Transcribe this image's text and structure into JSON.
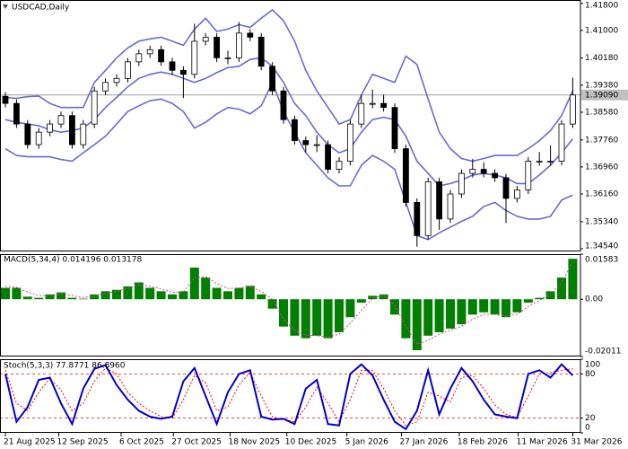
{
  "chart_data": [
    {
      "type": "candlestick",
      "title": "USDCAD,Daily",
      "open": [
        1.3905,
        1.3884,
        1.3823,
        1.3762,
        1.3799,
        1.3823,
        1.3848,
        1.3762,
        1.3823,
        1.3921,
        1.3946,
        1.3958,
        1.4007,
        1.4031,
        1.4043,
        1.4007,
        1.3982,
        1.397,
        1.4068,
        1.408,
        1.4019,
        1.4019,
        1.4092,
        1.408,
        1.3994,
        1.3921,
        1.3836,
        1.3774,
        1.3762,
        1.3762,
        1.3689,
        1.3713,
        1.3823,
        1.3884,
        1.3884,
        1.3872,
        1.375,
        1.3591,
        1.3493,
        1.3652,
        1.3542,
        1.3616,
        1.3677,
        1.3689,
        1.3677,
        1.3664,
        1.3603,
        1.3628,
        1.3713,
        1.3713,
        1.3713,
        1.3823
      ],
      "high": [
        1.3917,
        1.3896,
        1.3835,
        1.3811,
        1.3835,
        1.386,
        1.386,
        1.3835,
        1.3933,
        1.3958,
        1.397,
        1.4019,
        1.4043,
        1.4055,
        1.4055,
        1.4019,
        1.3994,
        1.412,
        1.4092,
        1.4092,
        1.404,
        1.4125,
        1.4104,
        1.4092,
        1.4006,
        1.3933,
        1.3848,
        1.3786,
        1.379,
        1.3774,
        1.3725,
        1.3835,
        1.391,
        1.3925,
        1.391,
        1.3884,
        1.3762,
        1.3603,
        1.3664,
        1.3664,
        1.3628,
        1.3689,
        1.372,
        1.371,
        1.3689,
        1.3676,
        1.364,
        1.3725,
        1.374,
        1.376,
        1.3835,
        1.396
      ],
      "low": [
        1.3872,
        1.3811,
        1.375,
        1.375,
        1.3787,
        1.3811,
        1.375,
        1.375,
        1.3811,
        1.3909,
        1.3934,
        1.3946,
        1.3995,
        1.4019,
        1.3995,
        1.397,
        1.39,
        1.3958,
        1.4056,
        1.4007,
        1.4,
        1.4007,
        1.4068,
        1.3982,
        1.3909,
        1.3824,
        1.3762,
        1.374,
        1.374,
        1.3677,
        1.3677,
        1.3701,
        1.3811,
        1.387,
        1.386,
        1.3738,
        1.3579,
        1.346,
        1.3481,
        1.351,
        1.353,
        1.3604,
        1.3665,
        1.3665,
        1.3652,
        1.353,
        1.3591,
        1.3616,
        1.37,
        1.37,
        1.3701,
        1.3811
      ],
      "close": [
        1.3884,
        1.3823,
        1.3762,
        1.3799,
        1.3823,
        1.3848,
        1.3762,
        1.3823,
        1.3921,
        1.3946,
        1.3958,
        1.4007,
        1.4031,
        1.4043,
        1.4007,
        1.3982,
        1.397,
        1.4068,
        1.408,
        1.4019,
        1.4019,
        1.4092,
        1.408,
        1.3994,
        1.3921,
        1.3836,
        1.3774,
        1.3762,
        1.3762,
        1.3689,
        1.3713,
        1.3823,
        1.3884,
        1.3884,
        1.3872,
        1.375,
        1.3591,
        1.3493,
        1.3652,
        1.3542,
        1.3616,
        1.3677,
        1.3689,
        1.3677,
        1.3664,
        1.3603,
        1.3628,
        1.3713,
        1.3713,
        1.3713,
        1.3823,
        1.3909
      ],
      "bands": {
        "color": "#6a6ad0",
        "upper": [
          1.3902,
          1.3899,
          1.3904,
          1.3906,
          1.3884,
          1.3872,
          1.3872,
          1.3872,
          1.3946,
          1.3982,
          1.4019,
          1.4048,
          1.4068,
          1.4075,
          1.408,
          1.4068,
          1.4056,
          1.4104,
          1.4136,
          1.4097,
          1.4104,
          1.4117,
          1.4109,
          1.4136,
          1.4161,
          1.4129,
          1.4068,
          1.3982,
          1.3921,
          1.3872,
          1.3823,
          1.3836,
          1.3909,
          1.397,
          1.3958,
          1.3946,
          1.4024,
          1.3999,
          1.3897,
          1.3799,
          1.375,
          1.3721,
          1.3713,
          1.3721,
          1.373,
          1.373,
          1.373,
          1.375,
          1.3774,
          1.3804,
          1.3848,
          1.3921
        ],
        "middle": [
          1.3836,
          1.3828,
          1.3823,
          1.3818,
          1.3806,
          1.3799,
          1.3804,
          1.3811,
          1.3836,
          1.3872,
          1.3902,
          1.3933,
          1.3958,
          1.397,
          1.3977,
          1.397,
          1.3958,
          1.3946,
          1.3958,
          1.3975,
          1.399,
          1.3994,
          1.4014,
          1.4019,
          1.3994,
          1.3946,
          1.3884,
          1.3848,
          1.3799,
          1.3762,
          1.3738,
          1.375,
          1.3799,
          1.3836,
          1.3843,
          1.3836,
          1.3787,
          1.3713,
          1.3677,
          1.364,
          1.3647,
          1.3657,
          1.3672,
          1.3677,
          1.3672,
          1.3664,
          1.3647,
          1.3647,
          1.3672,
          1.3701,
          1.3738,
          1.3779
        ],
        "lower": [
          1.375,
          1.373,
          1.3726,
          1.3726,
          1.3726,
          1.3718,
          1.3713,
          1.3738,
          1.3762,
          1.3787,
          1.3823,
          1.386,
          1.3877,
          1.3892,
          1.3897,
          1.3884,
          1.386,
          1.3811,
          1.3828,
          1.3853,
          1.3872,
          1.3867,
          1.3853,
          1.3877,
          1.3946,
          1.386,
          1.3799,
          1.3738,
          1.3701,
          1.3664,
          1.364,
          1.364,
          1.3701,
          1.373,
          1.3713,
          1.3689,
          1.3591,
          1.3493,
          1.3481,
          1.3501,
          1.3518,
          1.3535,
          1.355,
          1.3579,
          1.3591,
          1.3567,
          1.355,
          1.3542,
          1.3542,
          1.355,
          1.3598,
          1.3613
        ]
      },
      "last_price": {
        "value": 1.3909,
        "label": "1.39090"
      },
      "ylim": [
        1.3446,
        1.419
      ],
      "yticks": [
        {
          "value": 1.418,
          "label": "1.41800"
        },
        {
          "value": 1.41,
          "label": "1.41000"
        },
        {
          "value": 1.4018,
          "label": "1.40180"
        },
        {
          "value": 1.3938,
          "label": "1.39380"
        },
        {
          "value": 1.3858,
          "label": "1.38580"
        },
        {
          "value": 1.3776,
          "label": "1.37760"
        },
        {
          "value": 1.3696,
          "label": "1.36960"
        },
        {
          "value": 1.3616,
          "label": "1.36160"
        },
        {
          "value": 1.3534,
          "label": "1.35340"
        },
        {
          "value": 1.3454,
          "label": "1.34540"
        }
      ]
    },
    {
      "type": "macd",
      "title": "MACD(5,34,4) 0.014196 0.013178",
      "histogram": {
        "color": "#008000",
        "values": [
          0.004,
          0.004,
          0.0009,
          0.0005,
          0.0017,
          0.0024,
          0.0005,
          0.0002,
          0.0017,
          0.0028,
          0.0033,
          0.0045,
          0.0059,
          0.004,
          0.0028,
          0.0017,
          0.0028,
          0.0111,
          0.0076,
          0.004,
          0.0028,
          0.004,
          0.0047,
          0.0017,
          -0.0033,
          -0.0096,
          -0.0128,
          -0.0137,
          -0.0128,
          -0.0137,
          -0.0116,
          -0.0063,
          -0.0012,
          0.0012,
          0.0017,
          -0.0054,
          -0.0137,
          -0.0179,
          -0.0128,
          -0.0116,
          -0.0103,
          -0.0088,
          -0.0054,
          -0.0046,
          -0.0054,
          -0.0063,
          -0.0046,
          -0.0012,
          0.0005,
          0.0028,
          0.0076,
          0.0142
        ]
      },
      "signal": {
        "color": "#e0409a",
        "values": [
          0.0045,
          0.0042,
          0.0025,
          0.0012,
          0.0012,
          0.0019,
          0.0013,
          0.0006,
          0.0011,
          0.0021,
          0.0028,
          0.0038,
          0.005,
          0.0046,
          0.0036,
          0.0024,
          0.0025,
          0.0075,
          0.008,
          0.0055,
          0.0038,
          0.0039,
          0.0044,
          0.0027,
          0.0,
          -0.007,
          -0.011,
          -0.0126,
          -0.0128,
          -0.0133,
          -0.0123,
          -0.0084,
          -0.0039,
          0.0003,
          0.0014,
          -0.0021,
          -0.0096,
          -0.0158,
          -0.0144,
          -0.0123,
          -0.0109,
          -0.0095,
          -0.007,
          -0.0053,
          -0.0053,
          -0.006,
          -0.0053,
          -0.0025,
          -0.0004,
          0.0018,
          0.0058,
          0.0132
        ]
      },
      "ylim": [
        -0.02011,
        0.01583
      ],
      "yticks": [
        0.01583,
        {
          "value": 0,
          "label": "0.00"
        },
        -0.02011
      ]
    },
    {
      "type": "stochastic",
      "title": "Stoch(5,3,3) 77.8771 86.8960",
      "main": {
        "color": "#0000cc",
        "values": [
          80,
          15,
          35,
          72,
          75,
          40,
          12,
          60,
          87,
          92,
          65,
          45,
          30,
          22,
          19,
          22,
          70,
          88,
          50,
          12,
          55,
          80,
          85,
          22,
          18,
          19,
          12,
          60,
          72,
          12,
          10,
          80,
          93,
          78,
          45,
          15,
          5,
          30,
          85,
          25,
          60,
          88,
          70,
          45,
          25,
          22,
          20,
          80,
          85,
          75,
          93,
          77.8771
        ]
      },
      "signal": {
        "color": "#ff0000",
        "values": [
          85,
          40,
          30,
          55,
          74,
          58,
          30,
          40,
          70,
          88,
          80,
          55,
          40,
          30,
          22,
          20,
          45,
          78,
          68,
          30,
          35,
          65,
          82,
          50,
          22,
          18,
          15,
          35,
          62,
          40,
          15,
          45,
          85,
          85,
          60,
          30,
          10,
          15,
          55,
          50,
          42,
          75,
          78,
          60,
          38,
          25,
          21,
          50,
          80,
          82,
          85,
          86.896
        ]
      },
      "ylim": [
        0,
        100
      ],
      "yticks": [
        100,
        80,
        20,
        0
      ],
      "xticks": [
        {
          "value": 0,
          "label": "21 Aug 2025"
        },
        {
          "value": 4.8,
          "label": "12 Sep 2025"
        },
        {
          "value": 10.4,
          "label": "6 Oct 2025"
        },
        {
          "value": 15.1,
          "label": "27 Oct 2025"
        },
        {
          "value": 20.2,
          "label": "18 Nov 2025"
        },
        {
          "value": 25.3,
          "label": "10 Dec 2025"
        },
        {
          "value": 30.7,
          "label": "5 Jan 2026"
        },
        {
          "value": 35.6,
          "label": "27 Jan 2026"
        },
        {
          "value": 40.8,
          "label": "18 Feb 2026"
        },
        {
          "value": 46.1,
          "label": "11 Mar 2026"
        },
        {
          "value": 51,
          "label": "31 Mar 2026"
        }
      ]
    }
  ]
}
